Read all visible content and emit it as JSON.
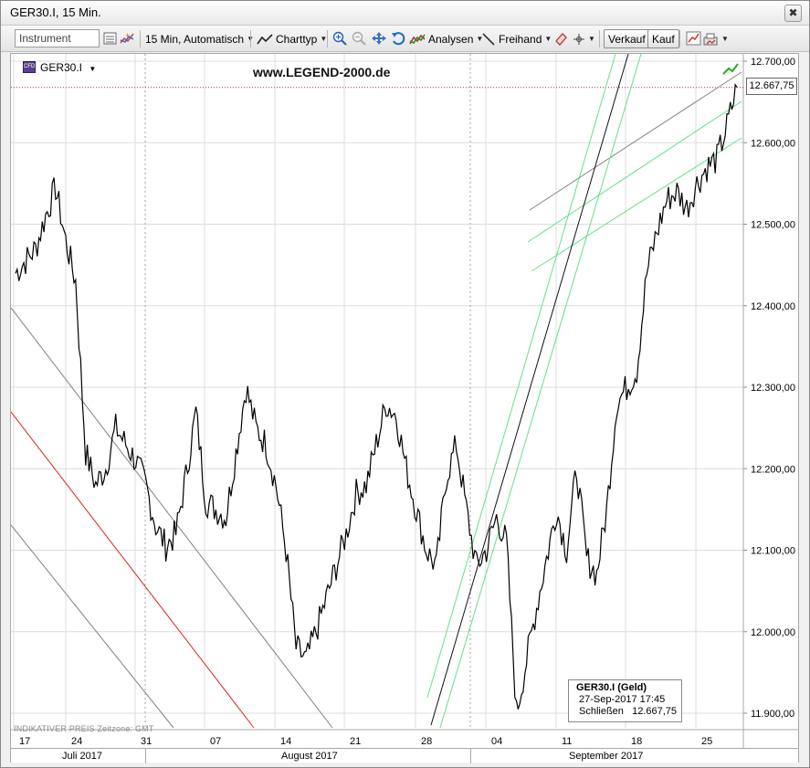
{
  "window": {
    "title": "GER30.I, 15 Min."
  },
  "toolbar": {
    "instrument_placeholder": "Instrument",
    "interval_label": "15 Min,  Automatisch",
    "charttype_label": "Charttyp",
    "analysen_label": "Analysen",
    "freihand_label": "Freihand",
    "verkauf_label": "Verkauf",
    "kauf_label": "Kauf"
  },
  "chart": {
    "instrument": "GER30.I",
    "watermark": "www.LEGEND-2000.de",
    "last_price": "12.667,75",
    "footer_note": "INDIKATIVER PREIS    Zeitzone: GMT",
    "info": {
      "title": "GER30.I (Geld)",
      "date": "27-Sep-2017 17:45",
      "close_label": "Schließen",
      "close_value": "12.667,75"
    },
    "months": [
      "Juli 2017",
      "August 2017",
      "September 2017"
    ],
    "colors": {
      "candles": "#000000",
      "channel_gray": "#808080",
      "trend_green": "#66e08a",
      "support_red": "#d8231c",
      "last_price_line": "#b03030"
    }
  },
  "chart_data": {
    "type": "line",
    "title": "GER30.I, 15 Min.",
    "xlabel": "",
    "ylabel": "",
    "ylim": [
      11870,
      12720
    ],
    "y_ticks": [
      "12.700,00",
      "12.600,00",
      "12.500,00",
      "12.400,00",
      "12.300,00",
      "12.200,00",
      "12.100,00",
      "12.000,00",
      "11.900,00"
    ],
    "x_ticks": [
      "17",
      "24",
      "31",
      "07",
      "14",
      "21",
      "28",
      "04",
      "11",
      "18",
      "25"
    ],
    "series": [
      {
        "x": [
          "17",
          "18",
          "19",
          "20",
          "21",
          "22",
          "23",
          "24",
          "25",
          "26",
          "27",
          "28",
          "29",
          "30",
          "31",
          "01",
          "02",
          "03",
          "04",
          "05",
          "06",
          "07",
          "08",
          "09",
          "10",
          "11",
          "12",
          "13",
          "14",
          "15",
          "16",
          "17",
          "18",
          "19",
          "20",
          "21",
          "22",
          "23",
          "24",
          "25",
          "26",
          "27",
          "28",
          "29",
          "30",
          "31",
          "01",
          "02",
          "03",
          "04",
          "05",
          "06",
          "07",
          "08",
          "09",
          "10",
          "11",
          "12",
          "13",
          "14",
          "15",
          "16",
          "17",
          "18",
          "19",
          "20",
          "21",
          "22",
          "23",
          "24",
          "25",
          "26",
          "27"
        ],
        "values": [
          12440,
          12455,
          12470,
          12510,
          12545,
          12480,
          12430,
          12220,
          12180,
          12200,
          12250,
          12230,
          12210,
          12180,
          12130,
          12105,
          12120,
          12190,
          12270,
          12160,
          12150,
          12140,
          12220,
          12300,
          12250,
          12230,
          12180,
          12100,
          11980,
          11965,
          12000,
          12040,
          12080,
          12120,
          12170,
          12180,
          12230,
          12280,
          12265,
          12200,
          12150,
          12100,
          12080,
          12190,
          12230,
          12150,
          12080,
          12100,
          12140,
          12110,
          11900,
          11965,
          12030,
          12090,
          12150,
          12100,
          12200,
          12090,
          12070,
          12150,
          12280,
          12300,
          12320,
          12440,
          12490,
          12530,
          12540,
          12520,
          12550,
          12570,
          12580,
          12620,
          12668
        ]
      }
    ]
  }
}
